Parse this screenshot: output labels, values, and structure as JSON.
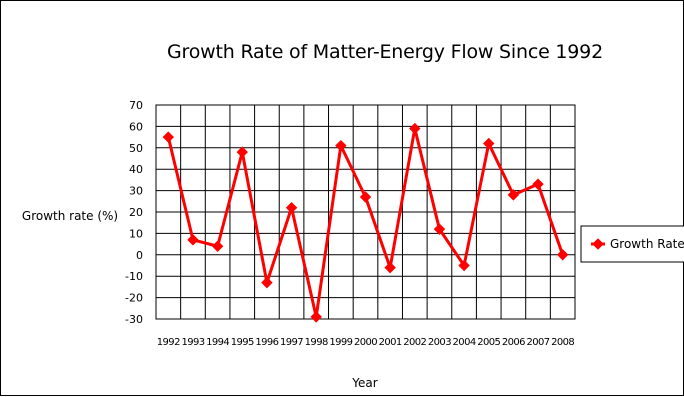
{
  "chart_data": {
    "type": "line",
    "title": "Growth Rate of Matter-Energy Flow Since 1992",
    "xlabel": "Year",
    "ylabel": "Growth rate (%)",
    "categories": [
      "1992",
      "1993",
      "1994",
      "1995",
      "1996",
      "1997",
      "1998",
      "1999",
      "2000",
      "2001",
      "2002",
      "2003",
      "2004",
      "2005",
      "2006",
      "2007",
      "2008"
    ],
    "series": [
      {
        "name": "Growth Rate",
        "color": "#ff0000",
        "values": [
          55,
          7,
          4,
          48,
          -13,
          22,
          -29,
          51,
          27,
          -6,
          59,
          12,
          -5,
          52,
          28,
          33,
          0
        ]
      }
    ],
    "ylim": [
      -30,
      70
    ],
    "yticks": [
      70,
      60,
      50,
      40,
      30,
      20,
      10,
      0,
      -10,
      -20,
      -30
    ],
    "grid": true,
    "legend": "right"
  }
}
